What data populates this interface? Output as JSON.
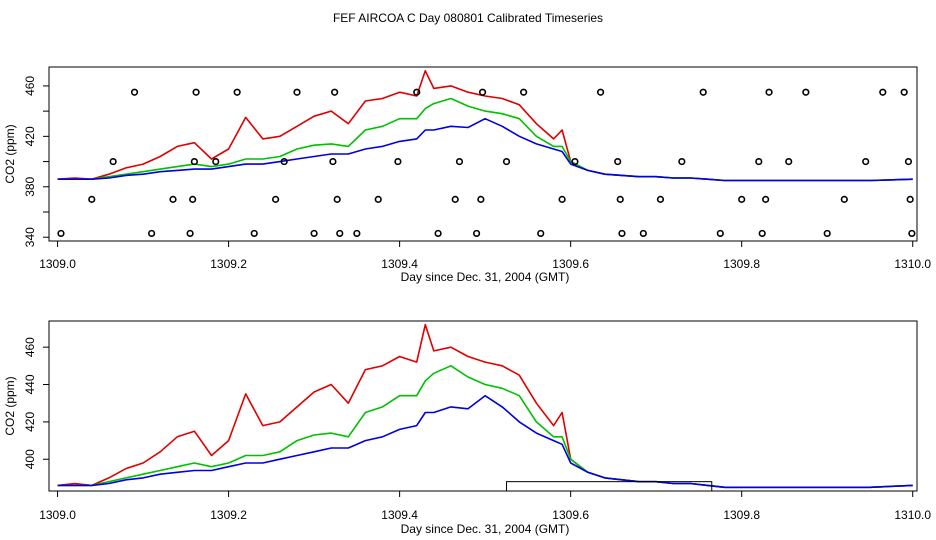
{
  "figure_title": "FEF AIRCOA C  Day 080801  Calibrated Timeseries",
  "colors": {
    "red": "#e00000",
    "green": "#00c000",
    "blue": "#0000e0",
    "axis": "#000000",
    "background": "#ffffff"
  },
  "chart_data": [
    {
      "type": "line",
      "title": "",
      "xlabel": "Day since Dec. 31, 2004 (GMT)",
      "ylabel": "CO2 (ppm)",
      "xlim": [
        1308.99,
        1310.005
      ],
      "ylim": [
        337,
        475
      ],
      "xticks": [
        1309.0,
        1309.2,
        1309.4,
        1309.6,
        1309.8,
        1310.0
      ],
      "xtick_labels": [
        "1309.0",
        "1309.2",
        "1309.4",
        "1309.6",
        "1309.8",
        "1310.0"
      ],
      "yticks": [
        340,
        380,
        420,
        460
      ],
      "ytick_labels": [
        "340",
        "380",
        "420",
        "460"
      ],
      "yminor_ticks": [
        360,
        400,
        440
      ],
      "x": [
        1309.0,
        1309.02,
        1309.04,
        1309.06,
        1309.08,
        1309.1,
        1309.12,
        1309.14,
        1309.16,
        1309.18,
        1309.2,
        1309.22,
        1309.24,
        1309.26,
        1309.28,
        1309.3,
        1309.32,
        1309.34,
        1309.36,
        1309.38,
        1309.4,
        1309.42,
        1309.43,
        1309.44,
        1309.46,
        1309.48,
        1309.5,
        1309.52,
        1309.54,
        1309.56,
        1309.58,
        1309.59,
        1309.6,
        1309.62,
        1309.64,
        1309.66,
        1309.68,
        1309.7,
        1309.72,
        1309.74,
        1309.76,
        1309.78,
        1309.8,
        1309.85,
        1309.9,
        1309.95,
        1310.0
      ],
      "series": [
        {
          "name": "red",
          "color": "#e00000",
          "values": [
            386,
            387,
            386,
            390,
            395,
            398,
            404,
            412,
            415,
            402,
            410,
            435,
            418,
            420,
            428,
            436,
            440,
            430,
            448,
            450,
            455,
            452,
            472,
            458,
            460,
            455,
            452,
            450,
            445,
            430,
            418,
            425,
            400,
            393,
            390,
            389,
            388,
            388,
            387,
            387,
            386,
            385,
            385,
            385,
            385,
            385,
            386
          ]
        },
        {
          "name": "green",
          "color": "#00c000",
          "values": [
            386,
            386,
            386,
            388,
            390,
            392,
            394,
            396,
            398,
            396,
            398,
            402,
            402,
            404,
            410,
            413,
            414,
            412,
            425,
            428,
            434,
            434,
            442,
            446,
            450,
            444,
            440,
            438,
            434,
            420,
            412,
            412,
            400,
            393,
            390,
            389,
            388,
            388,
            387,
            387,
            386,
            385,
            385,
            385,
            385,
            385,
            386
          ]
        },
        {
          "name": "blue",
          "color": "#0000e0",
          "values": [
            386,
            386,
            386,
            387,
            389,
            390,
            392,
            393,
            394,
            394,
            396,
            398,
            398,
            400,
            402,
            404,
            406,
            406,
            410,
            412,
            416,
            418,
            425,
            425,
            428,
            427,
            434,
            428,
            420,
            414,
            410,
            408,
            398,
            393,
            390,
            389,
            388,
            388,
            387,
            387,
            386,
            385,
            385,
            385,
            385,
            385,
            386
          ]
        }
      ],
      "scatter_markers": {
        "x": [
          1309.004,
          1309.04,
          1309.065,
          1309.09,
          1309.11,
          1309.135,
          1309.155,
          1309.158,
          1309.16,
          1309.162,
          1309.185,
          1309.21,
          1309.23,
          1309.255,
          1309.265,
          1309.28,
          1309.3,
          1309.322,
          1309.324,
          1309.327,
          1309.33,
          1309.35,
          1309.375,
          1309.398,
          1309.42,
          1309.445,
          1309.465,
          1309.47,
          1309.49,
          1309.495,
          1309.497,
          1309.525,
          1309.545,
          1309.565,
          1309.59,
          1309.605,
          1309.635,
          1309.655,
          1309.658,
          1309.66,
          1309.685,
          1309.705,
          1309.73,
          1309.755,
          1309.775,
          1309.8,
          1309.82,
          1309.824,
          1309.828,
          1309.832,
          1309.855,
          1309.875,
          1309.9,
          1309.92,
          1309.945,
          1309.965,
          1309.99,
          1309.995,
          1309.997,
          1309.999
        ],
        "y": [
          343,
          370,
          400,
          455,
          343,
          370,
          343,
          370,
          400,
          455,
          400,
          455,
          343,
          370,
          400,
          455,
          343,
          400,
          455,
          370,
          343,
          343,
          370,
          400,
          455,
          343,
          370,
          400,
          343,
          370,
          455,
          400,
          455,
          343,
          370,
          400,
          455,
          400,
          370,
          343,
          343,
          370,
          400,
          455,
          343,
          370,
          400,
          343,
          370,
          455,
          400,
          455,
          343,
          370,
          400,
          455,
          455,
          400,
          370,
          343
        ]
      },
      "scatter_marker_style": "open circle"
    },
    {
      "type": "line",
      "title": "",
      "xlabel": "Day since Dec. 31, 2004 (GMT)",
      "ylabel": "CO2 (ppm)",
      "xlim": [
        1308.99,
        1310.005
      ],
      "ylim": [
        383,
        474
      ],
      "xticks": [
        1309.0,
        1309.2,
        1309.4,
        1309.6,
        1309.8,
        1310.0
      ],
      "xtick_labels": [
        "1309.0",
        "1309.2",
        "1309.4",
        "1309.6",
        "1309.8",
        "1310.0"
      ],
      "yticks": [
        400,
        420,
        440,
        460
      ],
      "ytick_labels": [
        "400",
        "420",
        "440",
        "460"
      ],
      "x": [
        1309.0,
        1309.02,
        1309.04,
        1309.06,
        1309.08,
        1309.1,
        1309.12,
        1309.14,
        1309.16,
        1309.18,
        1309.2,
        1309.22,
        1309.24,
        1309.26,
        1309.28,
        1309.3,
        1309.32,
        1309.34,
        1309.36,
        1309.38,
        1309.4,
        1309.42,
        1309.43,
        1309.44,
        1309.46,
        1309.48,
        1309.5,
        1309.52,
        1309.54,
        1309.56,
        1309.58,
        1309.59,
        1309.6,
        1309.62,
        1309.64,
        1309.66,
        1309.68,
        1309.7,
        1309.72,
        1309.74,
        1309.76,
        1309.78,
        1309.8,
        1309.85,
        1309.9,
        1309.95,
        1310.0
      ],
      "series": [
        {
          "name": "red",
          "color": "#e00000",
          "values": [
            386,
            387,
            386,
            390,
            395,
            398,
            404,
            412,
            415,
            402,
            410,
            435,
            418,
            420,
            428,
            436,
            440,
            430,
            448,
            450,
            455,
            452,
            472,
            458,
            460,
            455,
            452,
            450,
            445,
            430,
            418,
            425,
            400,
            393,
            390,
            389,
            388,
            388,
            387,
            387,
            386,
            385,
            385,
            385,
            385,
            385,
            386
          ]
        },
        {
          "name": "green",
          "color": "#00c000",
          "values": [
            386,
            386,
            386,
            388,
            390,
            392,
            394,
            396,
            398,
            396,
            398,
            402,
            402,
            404,
            410,
            413,
            414,
            412,
            425,
            428,
            434,
            434,
            442,
            446,
            450,
            444,
            440,
            438,
            434,
            420,
            412,
            412,
            400,
            393,
            390,
            389,
            388,
            388,
            387,
            387,
            386,
            385,
            385,
            385,
            385,
            385,
            386
          ]
        },
        {
          "name": "blue",
          "color": "#0000e0",
          "values": [
            386,
            386,
            386,
            387,
            389,
            390,
            392,
            393,
            394,
            394,
            396,
            398,
            398,
            400,
            402,
            404,
            406,
            406,
            410,
            412,
            416,
            418,
            425,
            425,
            428,
            427,
            434,
            428,
            420,
            414,
            410,
            408,
            398,
            393,
            390,
            389,
            388,
            388,
            387,
            387,
            386,
            385,
            385,
            385,
            385,
            385,
            386
          ]
        }
      ],
      "annotation_box": {
        "x_range": [
          1309.525,
          1309.765
        ],
        "y_range": [
          383,
          388
        ]
      }
    }
  ]
}
